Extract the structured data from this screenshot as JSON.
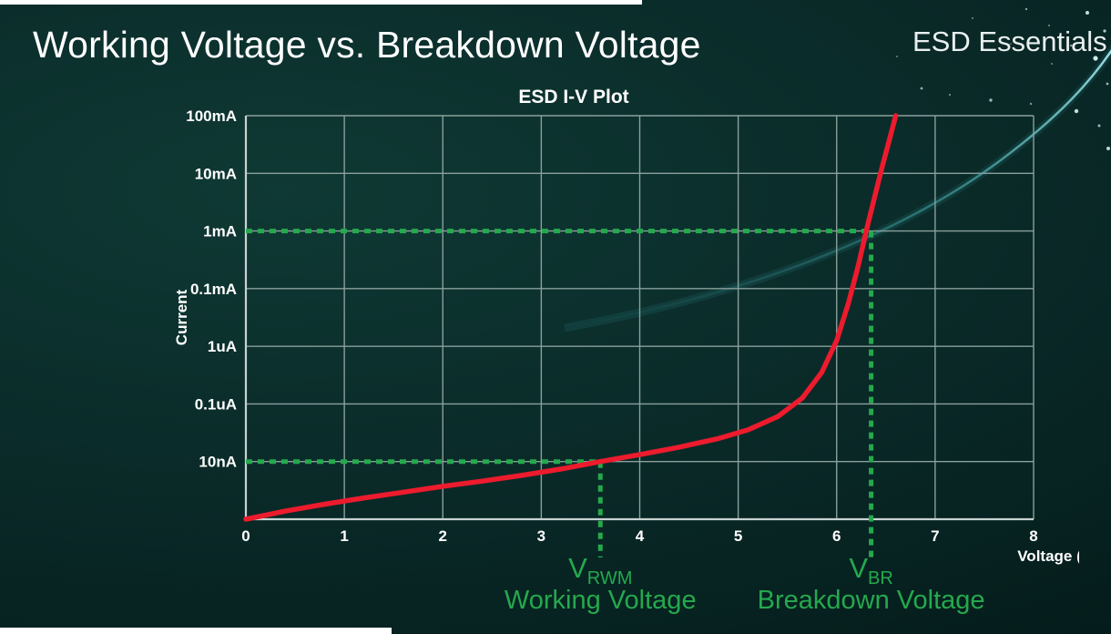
{
  "slide": {
    "title": "Working Voltage vs. Breakdown Voltage",
    "brand": "ESD Essentials"
  },
  "chart_data": {
    "type": "line",
    "title": "ESD I-V Plot",
    "xlabel": "Voltage (V)",
    "ylabel": "Current",
    "xlim": [
      0,
      8
    ],
    "x_ticks": [
      0,
      1,
      2,
      3,
      4,
      5,
      6,
      7,
      8
    ],
    "y_tick_labels_top_to_bottom": [
      "100mA",
      "10mA",
      "1mA",
      "0.1mA",
      "1uA",
      "0.1uA",
      "10nA"
    ],
    "grid": true,
    "colors": {
      "curve": "#ec1b2d",
      "marker_green": "#25a94d",
      "grid": "#8aa09d",
      "axis": "#c7d2d0",
      "text": "#ffffff"
    },
    "series": [
      {
        "name": "ESD I-V curve",
        "points": [
          [
            0,
            0
          ],
          [
            0.4,
            0.14
          ],
          [
            0.8,
            0.26
          ],
          [
            1.2,
            0.37
          ],
          [
            1.6,
            0.47
          ],
          [
            2,
            0.57
          ],
          [
            2.4,
            0.66
          ],
          [
            2.8,
            0.76
          ],
          [
            3.2,
            0.87
          ],
          [
            3.6,
            1.0
          ],
          [
            4,
            1.12
          ],
          [
            4.4,
            1.25
          ],
          [
            4.8,
            1.4
          ],
          [
            5.1,
            1.55
          ],
          [
            5.4,
            1.78
          ],
          [
            5.65,
            2.1
          ],
          [
            5.85,
            2.55
          ],
          [
            6.0,
            3.1
          ],
          [
            6.12,
            3.75
          ],
          [
            6.22,
            4.4
          ],
          [
            6.3,
            5.0
          ],
          [
            6.38,
            5.55
          ],
          [
            6.46,
            6.1
          ],
          [
            6.53,
            6.55
          ],
          [
            6.6,
            7.0
          ]
        ]
      }
    ],
    "markers": [
      {
        "label_main": "V",
        "label_sub": "RWM",
        "caption": "Working Voltage",
        "voltage": 3.6,
        "current": "10nA",
        "grid_level": 1
      },
      {
        "label_main": "V",
        "label_sub": "BR",
        "caption": "Breakdown Voltage",
        "voltage": 6.35,
        "current": "1mA",
        "grid_level": 5
      }
    ]
  }
}
